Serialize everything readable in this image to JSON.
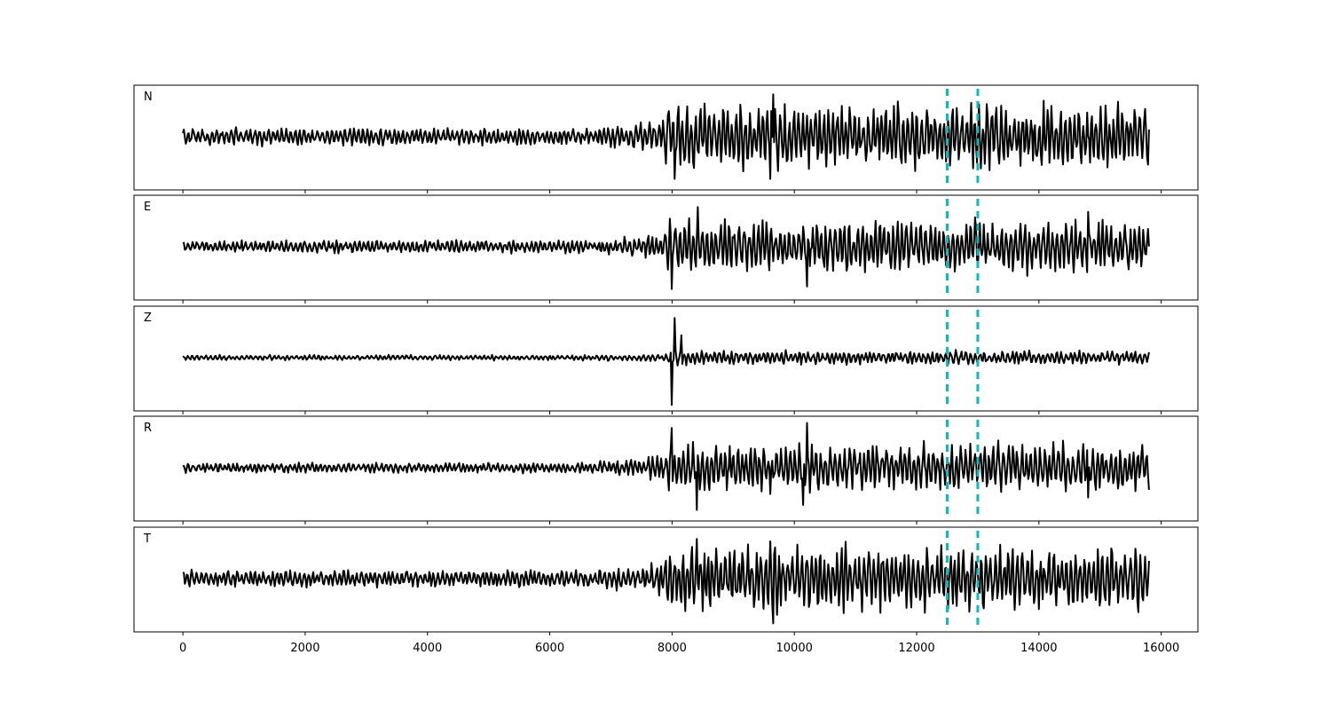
{
  "chart_data": {
    "type": "line",
    "title": "",
    "xlabel": "",
    "ylabel": "",
    "xlim": [
      -800,
      16600
    ],
    "grid": false,
    "legend": "none",
    "x_start": 0,
    "x_end": 15800,
    "x_ticks": [
      0,
      2000,
      4000,
      6000,
      8000,
      10000,
      12000,
      14000,
      16000
    ],
    "x_tick_labels": [
      "0",
      "2000",
      "4000",
      "6000",
      "8000",
      "10000",
      "12000",
      "14000",
      "16000"
    ],
    "markers": [
      {
        "x": 12500,
        "style": "dashed",
        "color": "#00bfbf"
      },
      {
        "x": 13000,
        "style": "dashed",
        "color": "#00bfbf"
      }
    ],
    "trace_color": "#000000",
    "panels": [
      {
        "label": "N",
        "ylim": [
          -1,
          1
        ],
        "pre_amp": 0.16,
        "post_amp": 0.6,
        "spikes": [
          {
            "x": 8050,
            "v": -0.85
          },
          {
            "x": 9650,
            "v": 0.85
          },
          {
            "x": 9600,
            "v": -0.85
          }
        ],
        "seed": 11
      },
      {
        "label": "E",
        "ylim": [
          -1,
          1
        ],
        "pre_amp": 0.12,
        "post_amp": 0.5,
        "spikes": [
          {
            "x": 8000,
            "v": -0.85
          },
          {
            "x": 8420,
            "v": 0.8
          },
          {
            "x": 10200,
            "v": -0.8
          },
          {
            "x": 14800,
            "v": 0.7
          }
        ],
        "seed": 23
      },
      {
        "label": "Z",
        "ylim": [
          -1,
          1
        ],
        "pre_amp": 0.05,
        "post_amp": 0.13,
        "spikes": [
          {
            "x": 8000,
            "v": -0.95
          },
          {
            "x": 8050,
            "v": 0.8
          },
          {
            "x": 8150,
            "v": 0.45
          }
        ],
        "seed": 37
      },
      {
        "label": "R",
        "ylim": [
          -1,
          1
        ],
        "pre_amp": 0.1,
        "post_amp": 0.45,
        "spikes": [
          {
            "x": 8000,
            "v": 0.8
          },
          {
            "x": 8400,
            "v": -0.85
          },
          {
            "x": 10200,
            "v": 0.9
          },
          {
            "x": 10150,
            "v": -0.75
          },
          {
            "x": 14800,
            "v": -0.6
          }
        ],
        "seed": 53
      },
      {
        "label": "T",
        "ylim": [
          -1,
          1
        ],
        "pre_amp": 0.16,
        "post_amp": 0.6,
        "spikes": [
          {
            "x": 9650,
            "v": -0.9
          },
          {
            "x": 9600,
            "v": 0.75
          },
          {
            "x": 8400,
            "v": 0.8
          }
        ],
        "seed": 71
      }
    ]
  }
}
